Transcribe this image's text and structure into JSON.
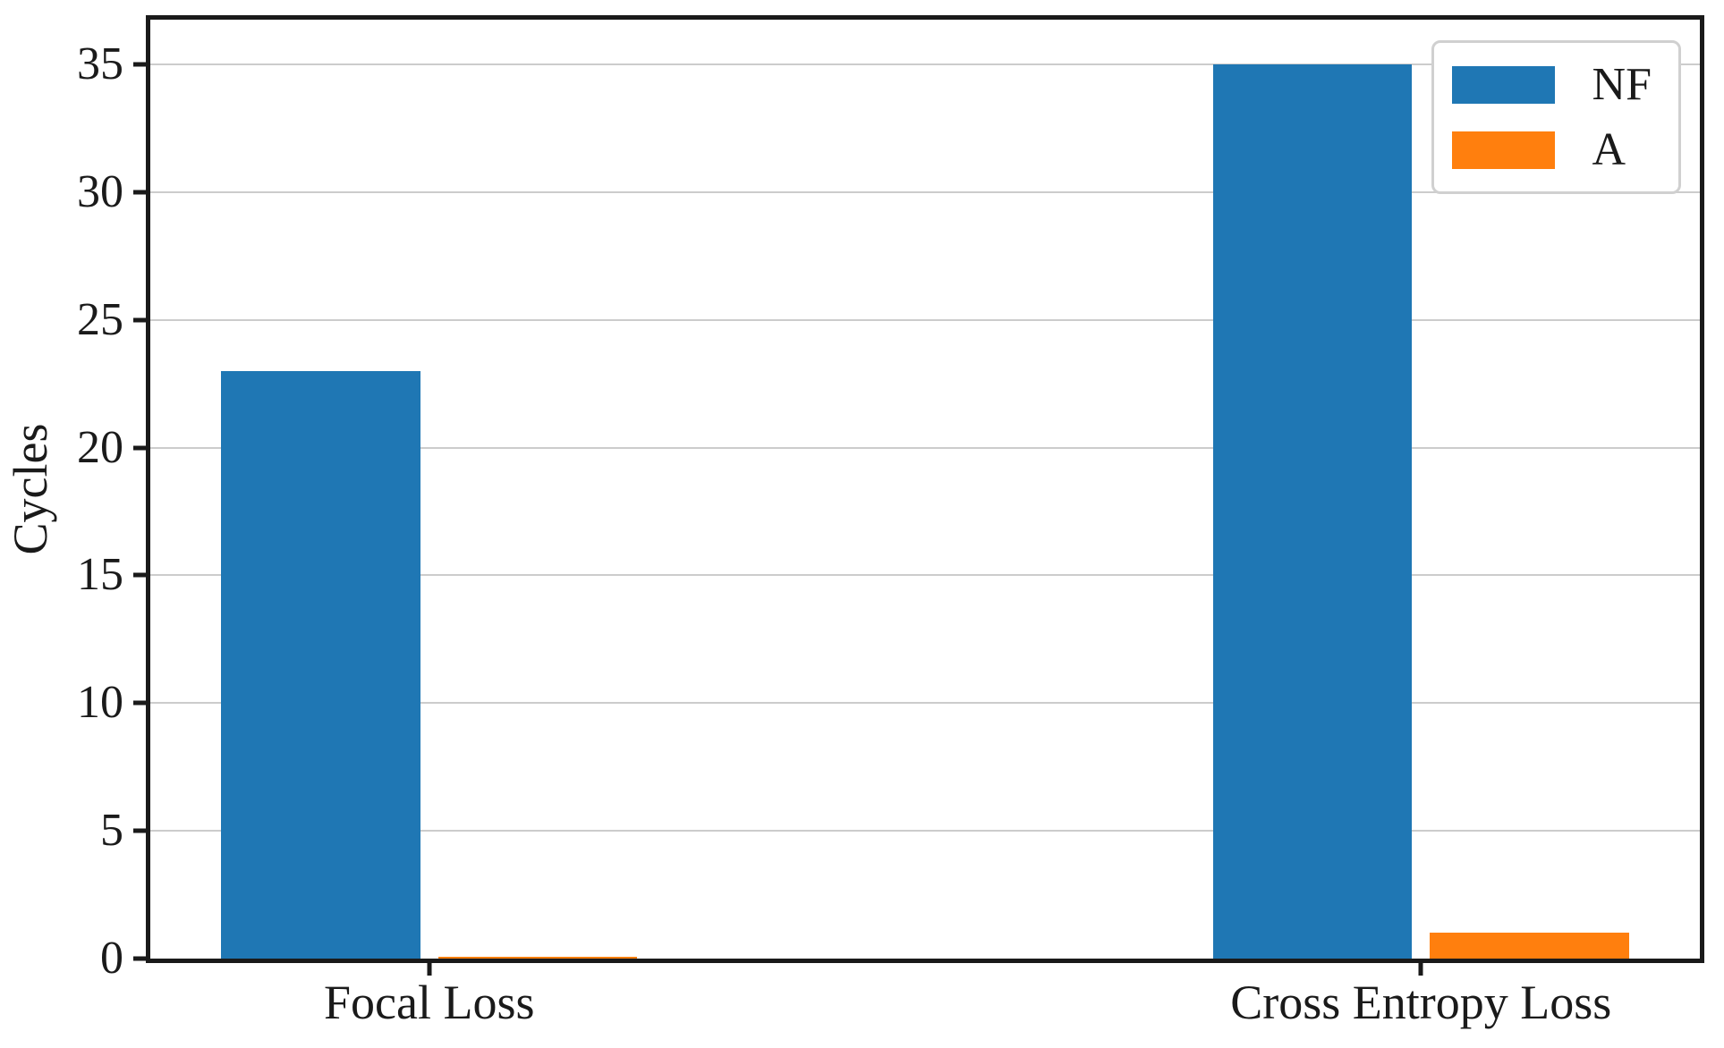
{
  "chart_data": {
    "type": "bar",
    "title": "",
    "xlabel": "",
    "ylabel": "Cycles",
    "categories": [
      "Focal Loss",
      "Cross Entropy Loss"
    ],
    "series": [
      {
        "name": "NF",
        "color": "#1f77b4",
        "values": [
          23,
          35
        ]
      },
      {
        "name": "A",
        "color": "#ff7f0e",
        "values": [
          0.05,
          1
        ]
      }
    ],
    "yticks": [
      0,
      5,
      10,
      15,
      20,
      25,
      30,
      35
    ],
    "ylim": [
      0,
      36.75
    ],
    "grid": "horizontal",
    "grid_color": "#cccccc",
    "legend_position": "upper right"
  }
}
